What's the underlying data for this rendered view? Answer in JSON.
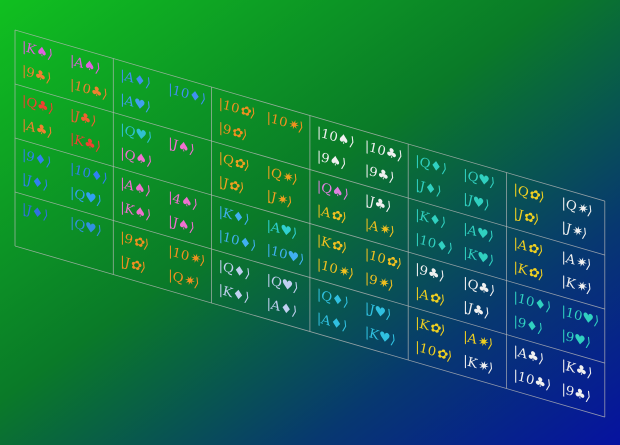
{
  "grid": [
    [
      [
        {
          "text": "|K♠⟩",
          "color": "#e060e0"
        },
        {
          "text": "|A♠⟩",
          "color": "#e060e0"
        },
        {
          "text": "|9♣⟩",
          "color": "#f08030"
        },
        {
          "text": "|10♣⟩",
          "color": "#f08030"
        }
      ],
      [
        {
          "text": "|Q♣⟩",
          "color": "#f04030"
        },
        {
          "text": "|J♣⟩",
          "color": "#f06030"
        },
        {
          "text": "|A♣⟩",
          "color": "#f08030"
        },
        {
          "text": "|K♣⟩",
          "color": "#f04030"
        }
      ],
      [
        {
          "text": "|9♦⟩",
          "color": "#3080f0"
        },
        {
          "text": "|10♦⟩",
          "color": "#3080f0"
        },
        {
          "text": "|J♦⟩",
          "color": "#3080f0"
        },
        {
          "text": "|Q♥⟩",
          "color": "#30a0f0"
        }
      ],
      [
        {
          "text": "|J♦⟩",
          "color": "#3070e0"
        },
        {
          "text": "|Q♥⟩",
          "color": "#3090e0"
        }
      ]
    ],
    [
      [
        {
          "text": "|A♦⟩",
          "color": "#4090f0"
        },
        {
          "text": "|10♦⟩",
          "color": "#4090f0"
        },
        {
          "text": "|A♥⟩",
          "color": "#40a0f0"
        }
      ],
      [
        {
          "text": "|Q♥⟩",
          "color": "#30c0d0"
        },
        {
          "text": "|J♠⟩",
          "color": "#f070d0"
        },
        {
          "text": "|Q♠⟩",
          "color": "#f070d0"
        }
      ],
      [
        {
          "text": "|A♠⟩",
          "color": "#f070d0"
        },
        {
          "text": "|4♠⟩",
          "color": "#f070d0"
        },
        {
          "text": "|K♠⟩",
          "color": "#f070d0"
        },
        {
          "text": "|J♠⟩",
          "color": "#f070d0"
        }
      ],
      [
        {
          "text": "|9✿⟩",
          "color": "#f09020"
        },
        {
          "text": "|10✷⟩",
          "color": "#f09020"
        },
        {
          "text": "|J✿⟩",
          "color": "#f09020"
        },
        {
          "text": "|Q✷⟩",
          "color": "#f09020"
        }
      ]
    ],
    [
      [
        {
          "text": "|10✿⟩",
          "color": "#f09020"
        },
        {
          "text": "|10✷⟩",
          "color": "#f09020"
        },
        {
          "text": "|9✿⟩",
          "color": "#f09020"
        }
      ],
      [
        {
          "text": "|Q✿⟩",
          "color": "#f0a020"
        },
        {
          "text": "|Q✷⟩",
          "color": "#f0a020"
        },
        {
          "text": "|J✿⟩",
          "color": "#f0a020"
        },
        {
          "text": "|J✷⟩",
          "color": "#f0a020"
        }
      ],
      [
        {
          "text": "|K♦⟩",
          "color": "#40b0f0"
        },
        {
          "text": "|A♥⟩",
          "color": "#30d0d0"
        },
        {
          "text": "|10♦⟩",
          "color": "#40b0f0"
        },
        {
          "text": "|10♥⟩",
          "color": "#40b0f0"
        }
      ],
      [
        {
          "text": "|Q♦⟩",
          "color": "#c0d0f0"
        },
        {
          "text": "|Q♥⟩",
          "color": "#c0d0f0"
        },
        {
          "text": "|K♦⟩",
          "color": "#c0d0f0"
        },
        {
          "text": "|A♦⟩",
          "color": "#c0d0f0"
        }
      ]
    ],
    [
      [
        {
          "text": "|10♠⟩",
          "color": "#f0f0f0"
        },
        {
          "text": "|10♣⟩",
          "color": "#f0f0f0"
        },
        {
          "text": "|9♠⟩",
          "color": "#f0f0f0"
        },
        {
          "text": "|9♣⟩",
          "color": "#f0f0f0"
        }
      ],
      [
        {
          "text": "|Q♠⟩",
          "color": "#e080e0"
        },
        {
          "text": "|J♣⟩",
          "color": "#f0f0f0"
        },
        {
          "text": "|A✿⟩",
          "color": "#f0c020"
        },
        {
          "text": "|A✷⟩",
          "color": "#f0c020"
        }
      ],
      [
        {
          "text": "|K✿⟩",
          "color": "#f0c020"
        },
        {
          "text": "|10✿⟩",
          "color": "#f0c020"
        },
        {
          "text": "|10✷⟩",
          "color": "#f0c020"
        },
        {
          "text": "|9✷⟩",
          "color": "#f0c020"
        }
      ],
      [
        {
          "text": "|Q♦⟩",
          "color": "#30c0e0"
        },
        {
          "text": "|J♥⟩",
          "color": "#30c0e0"
        },
        {
          "text": "|A♦⟩",
          "color": "#30c0e0"
        },
        {
          "text": "|K♥⟩",
          "color": "#30c0e0"
        }
      ]
    ],
    [
      [
        {
          "text": "|Q♦⟩",
          "color": "#30d0c0"
        },
        {
          "text": "|Q♥⟩",
          "color": "#30d0c0"
        },
        {
          "text": "|J♦⟩",
          "color": "#30d0c0"
        },
        {
          "text": "|J♥⟩",
          "color": "#30d0c0"
        }
      ],
      [
        {
          "text": "|K♦⟩",
          "color": "#30d0c0"
        },
        {
          "text": "|A♥⟩",
          "color": "#30d0c0"
        },
        {
          "text": "|10♦⟩",
          "color": "#30d0c0"
        },
        {
          "text": "|K♥⟩",
          "color": "#30d0c0"
        }
      ],
      [
        {
          "text": "|9♣⟩",
          "color": "#f0f0f0"
        },
        {
          "text": "|Q♣⟩",
          "color": "#f0f0f0"
        },
        {
          "text": "|A✿⟩",
          "color": "#f0d020"
        },
        {
          "text": "|J♣⟩",
          "color": "#f0f0f0"
        }
      ],
      [
        {
          "text": "|K✿⟩",
          "color": "#f0d020"
        },
        {
          "text": "|A✷⟩",
          "color": "#f0d020"
        },
        {
          "text": "|10✿⟩",
          "color": "#f0d020"
        },
        {
          "text": "|K✷⟩",
          "color": "#f0f0f0"
        }
      ]
    ],
    [
      [
        {
          "text": "|Q✿⟩",
          "color": "#f0d020"
        },
        {
          "text": "|Q✷⟩",
          "color": "#f0f0f0"
        },
        {
          "text": "|J✿⟩",
          "color": "#f0d020"
        },
        {
          "text": "|J✷⟩",
          "color": "#f0f0f0"
        }
      ],
      [
        {
          "text": "|A✿⟩",
          "color": "#f0d020"
        },
        {
          "text": "|A✷⟩",
          "color": "#f0f0f0"
        },
        {
          "text": "|K✿⟩",
          "color": "#f0d020"
        },
        {
          "text": "|K✷⟩",
          "color": "#f0f0f0"
        }
      ],
      [
        {
          "text": "|10♦⟩",
          "color": "#30d0c0"
        },
        {
          "text": "|10♥⟩",
          "color": "#30d0c0"
        },
        {
          "text": "|9♦⟩",
          "color": "#30d0c0"
        },
        {
          "text": "|9♥⟩",
          "color": "#30d0c0"
        }
      ],
      [
        {
          "text": "|A♣⟩",
          "color": "#f0f0f0"
        },
        {
          "text": "|K♣⟩",
          "color": "#f0f0f0"
        },
        {
          "text": "|10♣⟩",
          "color": "#f0f0f0"
        },
        {
          "text": "|9♣⟩",
          "color": "#f0f0f0"
        }
      ]
    ]
  ]
}
